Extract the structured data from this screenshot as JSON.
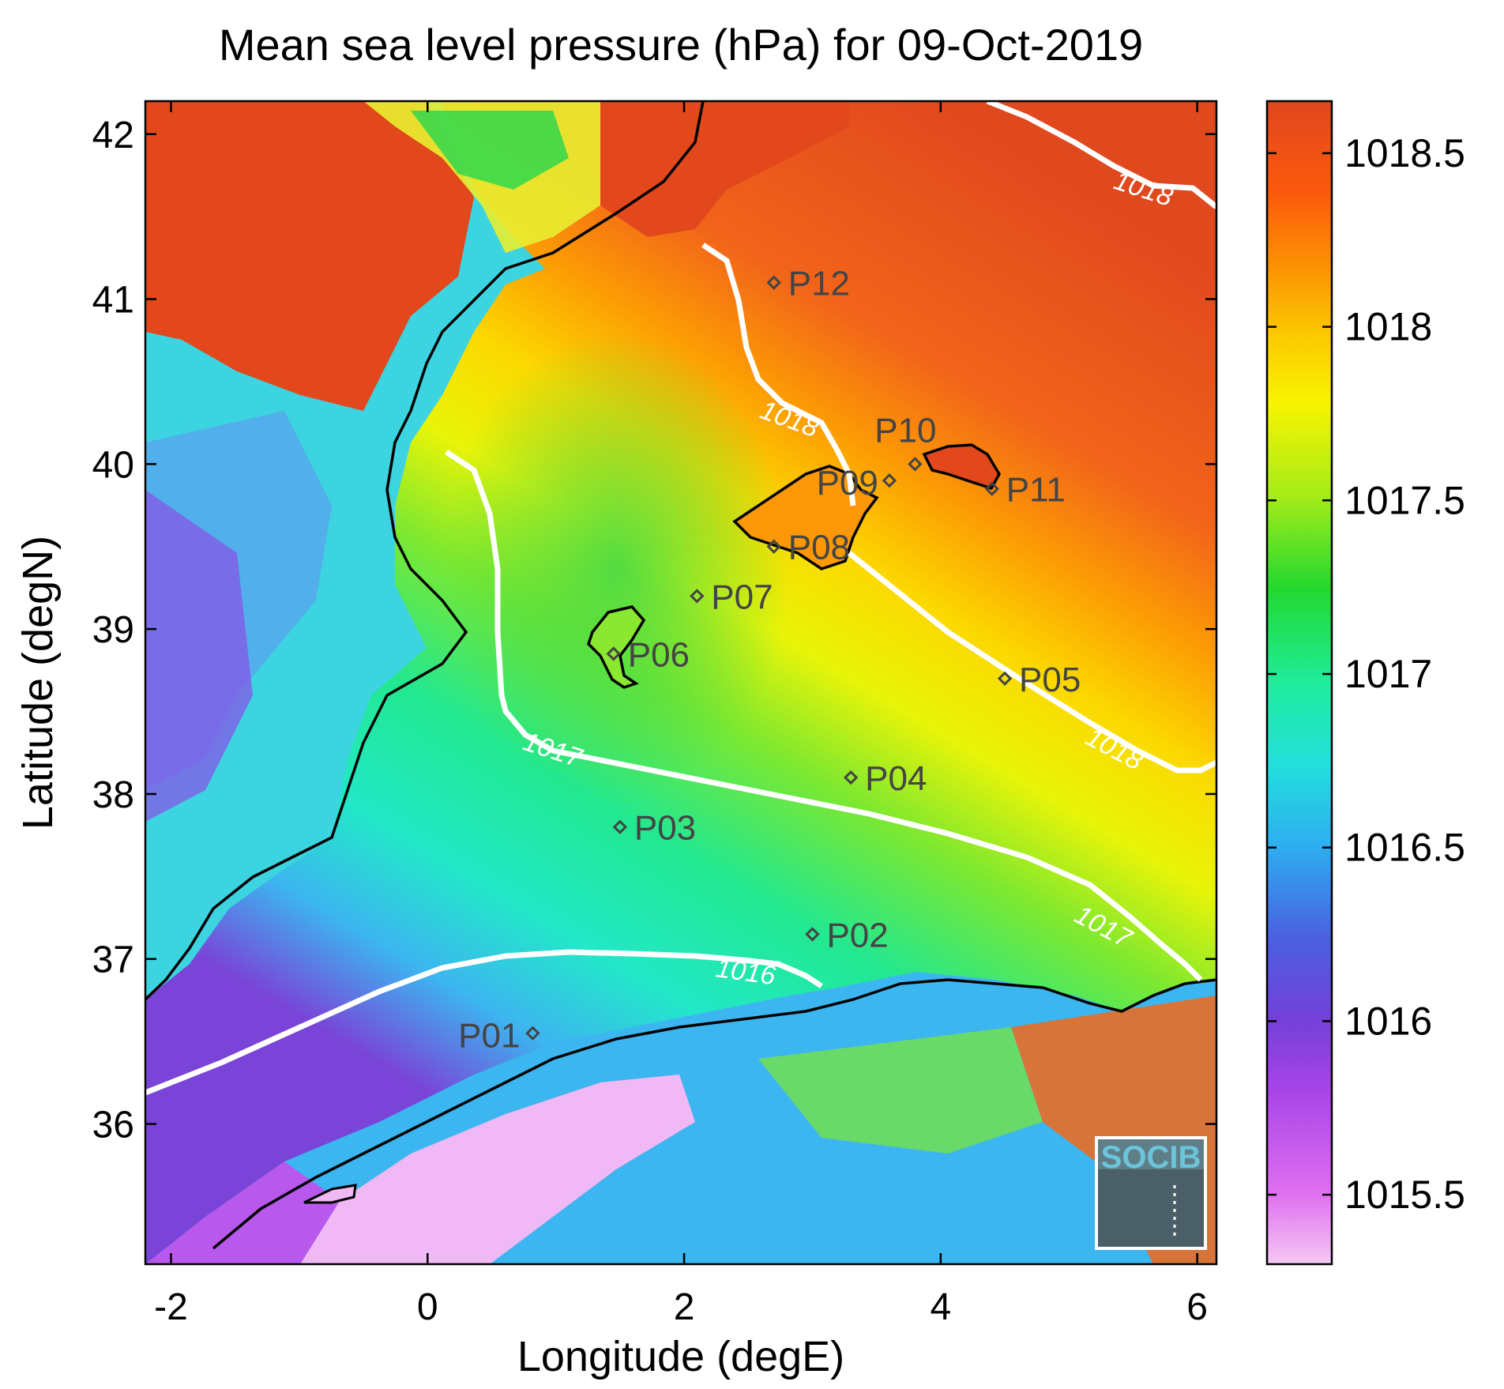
{
  "title": "Mean sea level pressure (hPa) for 09-Oct-2019",
  "map": {
    "xlabel": "Longitude (degE)",
    "ylabel": "Latitude (degN)",
    "xlim": [
      -2.2,
      6.15
    ],
    "ylim": [
      35.15,
      42.2
    ],
    "x_ticks": [
      "-2",
      "0",
      "2",
      "4",
      "6"
    ],
    "y_ticks": [
      "36",
      "37",
      "38",
      "39",
      "40",
      "41",
      "42"
    ],
    "stations": [
      {
        "name": "P01",
        "lon": 0.82,
        "lat": 36.55
      },
      {
        "name": "P02",
        "lon": 3.0,
        "lat": 37.15
      },
      {
        "name": "P03",
        "lon": 1.5,
        "lat": 37.8
      },
      {
        "name": "P04",
        "lon": 3.3,
        "lat": 38.1
      },
      {
        "name": "P05",
        "lon": 4.5,
        "lat": 38.7
      },
      {
        "name": "P06",
        "lon": 1.45,
        "lat": 38.85
      },
      {
        "name": "P07",
        "lon": 2.1,
        "lat": 39.2
      },
      {
        "name": "P08",
        "lon": 2.7,
        "lat": 39.5
      },
      {
        "name": "P09",
        "lon": 3.6,
        "lat": 39.9
      },
      {
        "name": "P10",
        "lon": 3.8,
        "lat": 40.0
      },
      {
        "name": "P11",
        "lon": 4.4,
        "lat": 39.85
      },
      {
        "name": "P12",
        "lon": 2.7,
        "lat": 41.1
      }
    ],
    "contours": [
      {
        "level": "1016"
      },
      {
        "level": "1017"
      },
      {
        "level": "1018"
      }
    ],
    "logo_text": "SOCIB"
  },
  "colorbar": {
    "range": [
      1015.3,
      1018.65
    ],
    "ticks": [
      {
        "value": 1015.5,
        "label": "1015.5"
      },
      {
        "value": 1016,
        "label": "1016"
      },
      {
        "value": 1016.5,
        "label": "1016.5"
      },
      {
        "value": 1017,
        "label": "1017"
      },
      {
        "value": 1017.5,
        "label": "1017.5"
      },
      {
        "value": 1018,
        "label": "1018"
      },
      {
        "value": 1018.5,
        "label": "1018.5"
      }
    ],
    "colors": [
      "#f2c4f2",
      "#cc44ee",
      "#7a3cd8",
      "#4a6ae0",
      "#2ec4ee",
      "#22e8c8",
      "#22d840",
      "#a8ec18",
      "#fcf600",
      "#fcb400",
      "#fc6a08",
      "#e0481c"
    ]
  }
}
